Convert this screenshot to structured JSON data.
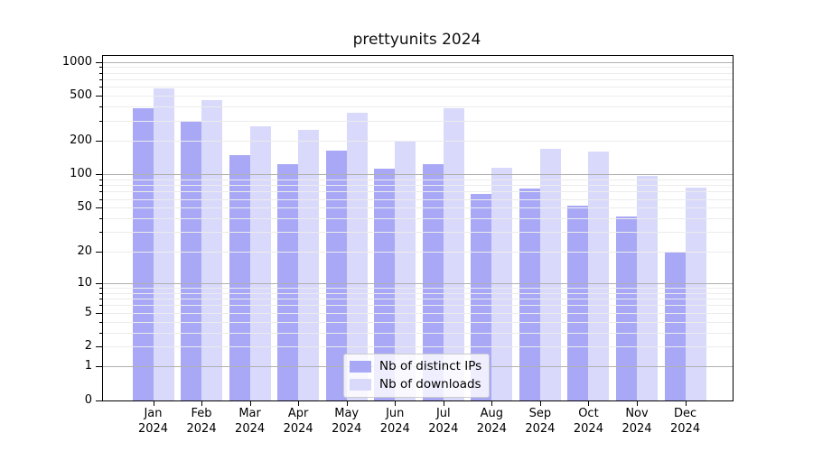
{
  "figure": {
    "background": "#ffffff"
  },
  "chart_data": {
    "type": "bar",
    "title": "prettyunits 2024",
    "categories": [
      "Jan",
      "Feb",
      "Mar",
      "Apr",
      "May",
      "Jun",
      "Jul",
      "Aug",
      "Sep",
      "Oct",
      "Nov",
      "Dec"
    ],
    "category_year": "2024",
    "series": [
      {
        "name": "Nb of distinct IPs",
        "color": "#a8a8f7",
        "values": [
          385,
          294,
          149,
          123,
          163,
          112,
          123,
          67,
          74,
          52,
          42,
          20
        ]
      },
      {
        "name": "Nb of downloads",
        "color": "#d9d9fb",
        "values": [
          578,
          458,
          266,
          247,
          354,
          196,
          386,
          114,
          170,
          160,
          97,
          76
        ]
      }
    ],
    "yscale": "log1p",
    "ylim": [
      0,
      1110
    ],
    "y_ticks": [
      0,
      1,
      2,
      5,
      10,
      20,
      50,
      100,
      200,
      500,
      1000
    ],
    "y_major_gridlines": [
      1,
      10,
      100,
      1000
    ],
    "y_minor_gridlines": [
      2,
      3,
      4,
      5,
      6,
      7,
      8,
      9,
      20,
      30,
      40,
      50,
      60,
      70,
      80,
      90,
      200,
      300,
      400,
      500,
      600,
      700,
      800,
      900
    ],
    "grid": "on",
    "legend_position": "lower center",
    "colors": {
      "major_grid": "#b0b0b0",
      "minor_grid": "#ececec",
      "axis": "#000000"
    }
  }
}
